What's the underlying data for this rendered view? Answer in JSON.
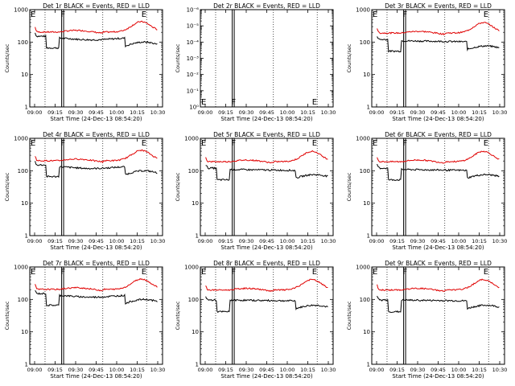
{
  "figure": {
    "background": "#ffffff",
    "event_color": "#000000",
    "lld_color": "#e00000"
  },
  "chart_data": [
    {
      "type": "line",
      "title": "Det 1r BLACK = Events, RED = LLD",
      "xlabel": "Start Time (24-Dec-13 08:54:20)",
      "ylabel": "Counts/sec",
      "y_scale": "log",
      "ylim": [
        1,
        1000
      ],
      "y_ticks": [
        "1",
        "10",
        "100",
        "1000"
      ],
      "x_ticks": [
        "09:00",
        "09:15",
        "09:30",
        "09:45",
        "10:00",
        "10:15",
        "10:30"
      ],
      "markers": [
        "E",
        "F",
        "E"
      ],
      "profile": "A",
      "series": [
        {
          "name": "Events",
          "color": "#000000"
        },
        {
          "name": "LLD",
          "color": "#e00000"
        }
      ]
    },
    {
      "type": "line",
      "title": "Det 2r BLACK = Events, RED = LLD",
      "xlabel": "Start Time (24-Dec-13 08:54:20)",
      "ylabel": "Counts/sec",
      "y_scale": "log",
      "ylim": [
        1,
        1e-06
      ],
      "y_ticks": [
        "10⁰",
        "10⁻¹",
        "10⁻²",
        "10⁻³",
        "10⁻⁴",
        "10⁻⁵",
        "10⁻⁶"
      ],
      "x_ticks": [
        "09:00",
        "09:15",
        "09:30",
        "09:45",
        "10:00",
        "10:15",
        "10:30"
      ],
      "markers": [
        "E",
        "F",
        "E"
      ],
      "profile": "none",
      "series": []
    },
    {
      "type": "line",
      "title": "Det 3r BLACK = Events, RED = LLD",
      "xlabel": "Start Time (24-Dec-13 08:54:20)",
      "ylabel": "Counts/sec",
      "y_scale": "log",
      "ylim": [
        1,
        1000
      ],
      "y_ticks": [
        "1",
        "10",
        "100",
        "1000"
      ],
      "x_ticks": [
        "09:00",
        "09:15",
        "09:30",
        "09:45",
        "10:00",
        "10:15",
        "10:30"
      ],
      "markers": [
        "E",
        "F",
        "E"
      ],
      "profile": "B",
      "series": [
        {
          "name": "Events",
          "color": "#000000"
        },
        {
          "name": "LLD",
          "color": "#e00000"
        }
      ]
    },
    {
      "type": "line",
      "title": "Det 4r BLACK = Events, RED = LLD",
      "xlabel": "Start Time (24-Dec-13 08:54:20)",
      "ylabel": "Counts/sec",
      "y_scale": "log",
      "ylim": [
        1,
        1000
      ],
      "y_ticks": [
        "1",
        "10",
        "100",
        "1000"
      ],
      "x_ticks": [
        "09:00",
        "09:15",
        "09:30",
        "09:45",
        "10:00",
        "10:15",
        "10:30"
      ],
      "markers": [
        "E",
        "F",
        "E"
      ],
      "profile": "A",
      "series": [
        {
          "name": "Events",
          "color": "#000000"
        },
        {
          "name": "LLD",
          "color": "#e00000"
        }
      ]
    },
    {
      "type": "line",
      "title": "Det 5r BLACK = Events, RED = LLD",
      "xlabel": "Start Time (24-Dec-13 08:54:20)",
      "ylabel": "Counts/sec",
      "y_scale": "log",
      "ylim": [
        1,
        1000
      ],
      "y_ticks": [
        "1",
        "10",
        "100",
        "1000"
      ],
      "x_ticks": [
        "09:00",
        "09:15",
        "09:30",
        "09:45",
        "10:00",
        "10:15",
        "10:30"
      ],
      "markers": [
        "E",
        "F",
        "E"
      ],
      "profile": "B",
      "series": [
        {
          "name": "Events",
          "color": "#000000"
        },
        {
          "name": "LLD",
          "color": "#e00000"
        }
      ]
    },
    {
      "type": "line",
      "title": "Det 6r BLACK = Events, RED = LLD",
      "xlabel": "Start Time (24-Dec-13 08:54:20)",
      "ylabel": "Counts/sec",
      "y_scale": "log",
      "ylim": [
        1,
        1000
      ],
      "y_ticks": [
        "1",
        "10",
        "100",
        "1000"
      ],
      "x_ticks": [
        "09:00",
        "09:15",
        "09:30",
        "09:45",
        "10:00",
        "10:15",
        "10:30"
      ],
      "markers": [
        "E",
        "F",
        "E"
      ],
      "profile": "B",
      "series": [
        {
          "name": "Events",
          "color": "#000000"
        },
        {
          "name": "LLD",
          "color": "#e00000"
        }
      ]
    },
    {
      "type": "line",
      "title": "Det 7r BLACK = Events, RED = LLD",
      "xlabel": "Start Time (24-Dec-13 08:54:20)",
      "ylabel": "Counts/sec",
      "y_scale": "log",
      "ylim": [
        1,
        1000
      ],
      "y_ticks": [
        "1",
        "10",
        "100",
        "1000"
      ],
      "x_ticks": [
        "09:00",
        "09:15",
        "09:30",
        "09:45",
        "10:00",
        "10:15",
        "10:30"
      ],
      "markers": [
        "E",
        "F",
        "E"
      ],
      "profile": "A",
      "series": [
        {
          "name": "Events",
          "color": "#000000"
        },
        {
          "name": "LLD",
          "color": "#e00000"
        }
      ]
    },
    {
      "type": "line",
      "title": "Det 8r BLACK = Events, RED = LLD",
      "xlabel": "Start Time (24-Dec-13 08:54:20)",
      "ylabel": "Counts/sec",
      "y_scale": "log",
      "ylim": [
        1,
        1000
      ],
      "y_ticks": [
        "1",
        "10",
        "100",
        "1000"
      ],
      "x_ticks": [
        "09:00",
        "09:15",
        "09:30",
        "09:45",
        "10:00",
        "10:15",
        "10:30"
      ],
      "markers": [
        "E",
        "F",
        "E"
      ],
      "profile": "C",
      "series": [
        {
          "name": "Events",
          "color": "#000000"
        },
        {
          "name": "LLD",
          "color": "#e00000"
        }
      ]
    },
    {
      "type": "line",
      "title": "Det 9r BLACK = Events, RED = LLD",
      "xlabel": "Start Time (24-Dec-13 08:54:20)",
      "ylabel": "Counts/sec",
      "y_scale": "log",
      "ylim": [
        1,
        1000
      ],
      "y_ticks": [
        "1",
        "10",
        "100",
        "1000"
      ],
      "x_ticks": [
        "09:00",
        "09:15",
        "09:30",
        "09:45",
        "10:00",
        "10:15",
        "10:30"
      ],
      "markers": [
        "E",
        "F",
        "E"
      ],
      "profile": "C",
      "series": [
        {
          "name": "Events",
          "color": "#000000"
        },
        {
          "name": "LLD",
          "color": "#e00000"
        }
      ]
    }
  ]
}
